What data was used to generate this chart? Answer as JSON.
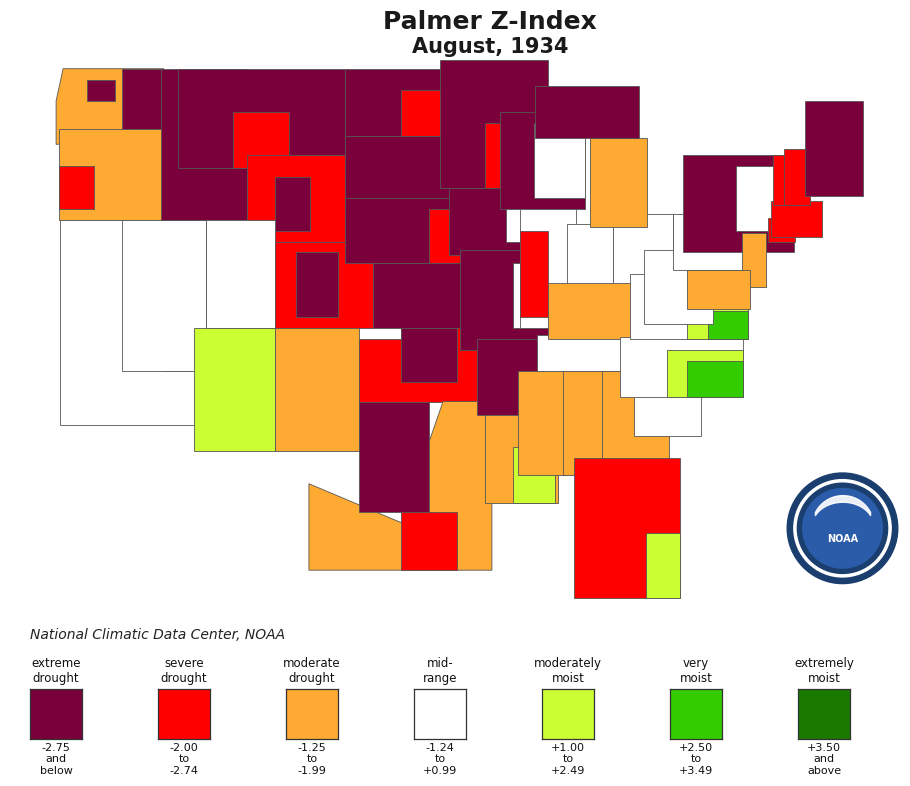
{
  "title_line1": "Palmer Z-Index",
  "title_line2": "August, 1934",
  "title_fontsize": 18,
  "subtitle_fontsize": 15,
  "background_color": "#ffffff",
  "source_text": "National Climatic Data Center, NOAA",
  "source_fontsize": 10,
  "colors": {
    "extreme_drought": "#7a003c",
    "severe_drought": "#ff0000",
    "moderate_drought": "#ffaa33",
    "mid_range": "#ffffff",
    "moderately_moist": "#ccff33",
    "very_moist": "#33cc00",
    "extremely_moist": "#1a7a00",
    "border": "#666666",
    "map_bg": "#ffffff"
  },
  "legend_categories": [
    {
      "label": "extreme\ndrought",
      "range": "-2.75\nand\nbelow",
      "color": "#7a003c"
    },
    {
      "label": "severe\ndrought",
      "range": "-2.00\nto\n-2.74",
      "color": "#ff0000"
    },
    {
      "label": "moderate\ndrought",
      "range": "-1.25\nto\n-1.99",
      "color": "#ffaa33"
    },
    {
      "label": "mid-\nrange",
      "range": "-1.24\nto\n+0.99",
      "color": "#ffffff"
    },
    {
      "label": "moderately\nmoist",
      "range": "+1.00\nto\n+2.49",
      "color": "#ccff33"
    },
    {
      "label": "very\nmoist",
      "range": "+2.50\nto\n+3.49",
      "color": "#33cc00"
    },
    {
      "label": "extremely\nmoist",
      "range": "+3.50\nand\nabove",
      "color": "#1a7a00"
    }
  ],
  "state_colors": {
    "Washington": "moderate_drought",
    "Oregon": "moderate_drought",
    "California": "mid_range",
    "Nevada": "mid_range",
    "Idaho": "extreme_drought",
    "Montana": "extreme_drought",
    "Wyoming": "severe_drought",
    "Utah": "mid_range",
    "Colorado": "severe_drought",
    "Arizona": "moderately_moist",
    "New Mexico": "moderate_drought",
    "North Dakota": "extreme_drought",
    "South Dakota": "extreme_drought",
    "Nebraska": "extreme_drought",
    "Kansas": "extreme_drought",
    "Oklahoma": "severe_drought",
    "Texas": "moderate_drought",
    "Minnesota": "extreme_drought",
    "Iowa": "extreme_drought",
    "Missouri": "extreme_drought",
    "Wisconsin": "extreme_drought",
    "Illinois": "mid_range",
    "Indiana": "mid_range",
    "Ohio": "mid_range",
    "Michigan": "extreme_drought",
    "Arkansas": "extreme_drought",
    "Louisiana": "moderate_drought",
    "Mississippi": "moderate_drought",
    "Tennessee": "mid_range",
    "Kentucky": "moderate_drought",
    "Alabama": "moderate_drought",
    "Georgia": "moderate_drought",
    "Florida": "severe_drought",
    "South Carolina": "mid_range",
    "North Carolina": "mid_range",
    "Virginia": "mid_range",
    "West Virginia": "mid_range",
    "Maryland": "moderate_drought",
    "Delaware": "moderate_drought",
    "New Jersey": "moderate_drought",
    "Pennsylvania": "mid_range",
    "New York": "extreme_drought",
    "Connecticut": "severe_drought",
    "Rhode Island": "severe_drought",
    "Massachusetts": "severe_drought",
    "Vermont": "severe_drought",
    "New Hampshire": "severe_drought",
    "Maine": "extreme_drought"
  }
}
